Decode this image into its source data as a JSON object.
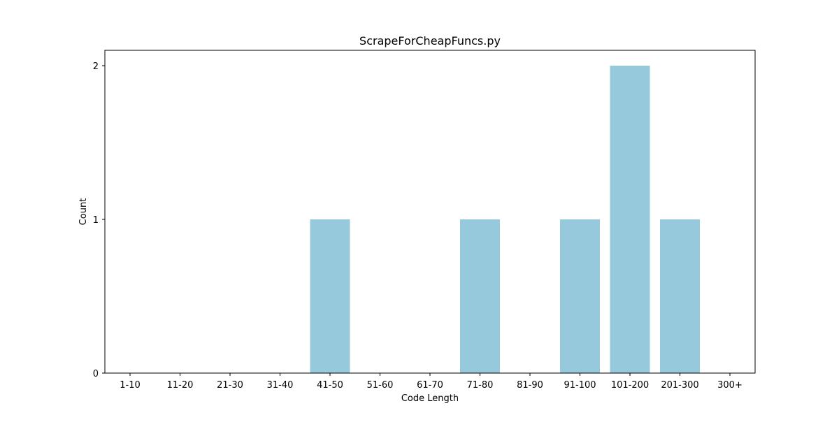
{
  "chart_data": {
    "type": "bar",
    "title": "ScrapeForCheapFuncs.py",
    "xlabel": "Code Length",
    "ylabel": "Count",
    "categories": [
      "1-10",
      "11-20",
      "21-30",
      "31-40",
      "41-50",
      "51-60",
      "61-70",
      "71-80",
      "81-90",
      "91-100",
      "101-200",
      "201-300",
      "300+"
    ],
    "values": [
      0,
      0,
      0,
      0,
      1,
      0,
      0,
      1,
      0,
      1,
      2,
      1,
      0
    ],
    "yticks": [
      0,
      1,
      2
    ],
    "ylim": [
      0,
      2.1
    ],
    "grid": false,
    "bar_color": "#96c9dc"
  }
}
